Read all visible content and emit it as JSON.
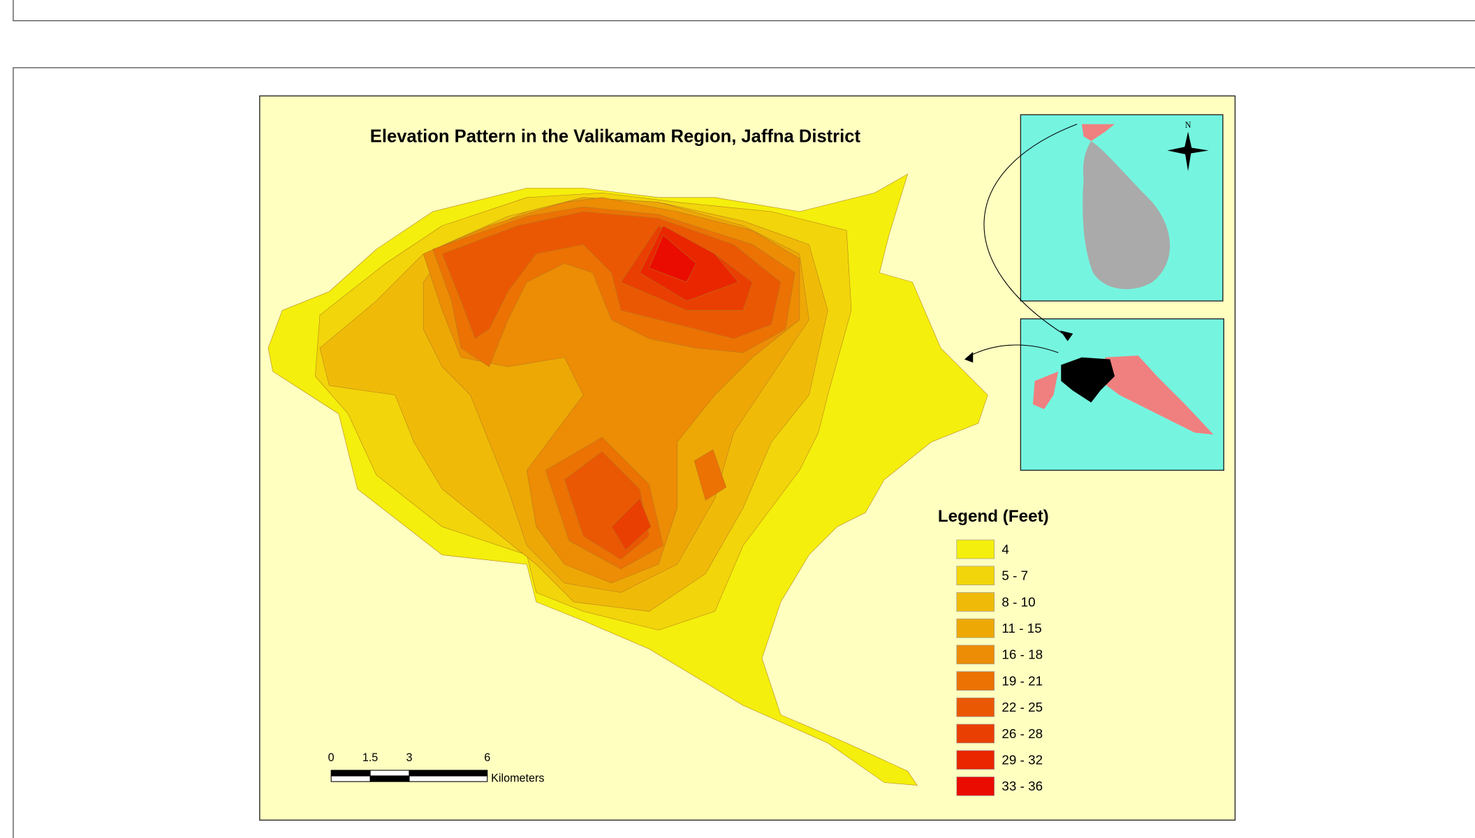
{
  "map": {
    "title": "Elevation Pattern in the Valikamam Region, Jaffna District",
    "legend": {
      "title": "Legend (Feet)",
      "items": [
        {
          "label": "4",
          "color": "#f4ef0c"
        },
        {
          "label": "5 - 7",
          "color": "#f2d50a"
        },
        {
          "label": "8 - 10",
          "color": "#f0bb08"
        },
        {
          "label": "11 - 15",
          "color": "#eea806"
        },
        {
          "label": "16 - 18",
          "color": "#ed8c05"
        },
        {
          "label": "19 - 21",
          "color": "#ec7204"
        },
        {
          "label": "22 - 25",
          "color": "#eb5803"
        },
        {
          "label": "26 - 28",
          "color": "#ea3f02"
        },
        {
          "label": "29 - 32",
          "color": "#ea2601"
        },
        {
          "label": "33 - 36",
          "color": "#ea0c00"
        }
      ]
    },
    "scale_bar": {
      "ticks": [
        0,
        1.5,
        3,
        6
      ],
      "unit": "Kilometers"
    },
    "north_arrow": "N"
  }
}
